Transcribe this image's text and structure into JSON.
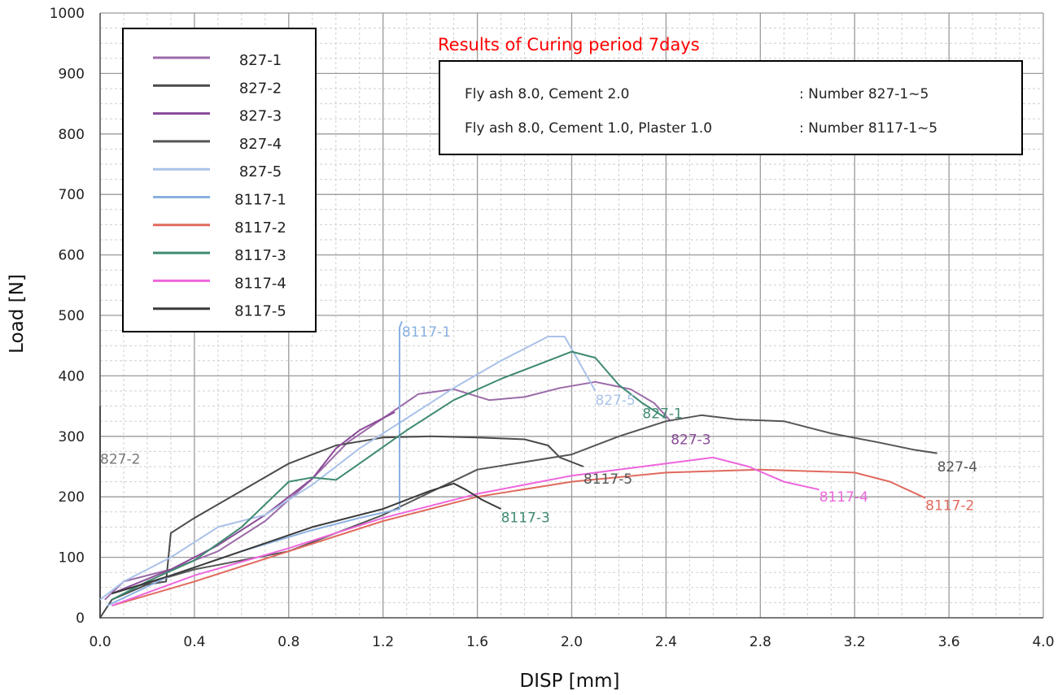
{
  "chart_data": {
    "type": "line",
    "xlabel": "DISP [mm]",
    "ylabel": "Load [N]",
    "xlim": [
      0.0,
      4.0
    ],
    "ylim": [
      0,
      1000
    ],
    "xticks": [
      "0.0",
      "0.4",
      "0.8",
      "1.2",
      "1.6",
      "2.0",
      "2.4",
      "2.8",
      "3.2",
      "3.6",
      "4.0"
    ],
    "yticks": [
      "0",
      "100",
      "200",
      "300",
      "400",
      "500",
      "600",
      "700",
      "800",
      "900",
      "1000"
    ],
    "grid": true,
    "legend_position": "top-left",
    "annotation": {
      "title": "Results of Curing period 7days",
      "rows": [
        {
          "material": "Fly ash 8.0, Cement 2.0",
          "number": ":  Number 827-1~5"
        },
        {
          "material": "Fly ash 8.0, Cement 1.0, Plaster 1.0",
          "number": ":  Number 8117-1~5"
        }
      ]
    },
    "series": [
      {
        "name": "827-1",
        "color": "#9b6aa8",
        "label": "827-1",
        "points": [
          [
            0.02,
            30
          ],
          [
            0.1,
            60
          ],
          [
            0.3,
            80
          ],
          [
            0.5,
            110
          ],
          [
            0.7,
            160
          ],
          [
            0.9,
            230
          ],
          [
            1.05,
            290
          ],
          [
            1.2,
            330
          ],
          [
            1.35,
            370
          ],
          [
            1.5,
            378
          ],
          [
            1.65,
            360
          ],
          [
            1.8,
            365
          ],
          [
            1.95,
            380
          ],
          [
            2.1,
            390
          ],
          [
            2.25,
            378
          ],
          [
            2.35,
            355
          ],
          [
            2.42,
            325
          ]
        ]
      },
      {
        "name": "827-2",
        "color": "#4a4a4a",
        "label": "827-2",
        "points": [
          [
            0.0,
            350
          ],
          [
            0.0,
            0
          ],
          [
            0.05,
            30
          ],
          [
            0.2,
            55
          ],
          [
            0.28,
            60
          ],
          [
            0.3,
            140
          ],
          [
            0.4,
            165
          ],
          [
            0.6,
            210
          ],
          [
            0.8,
            255
          ],
          [
            1.0,
            285
          ],
          [
            1.2,
            298
          ],
          [
            1.4,
            300
          ],
          [
            1.6,
            298
          ],
          [
            1.8,
            295
          ],
          [
            1.9,
            285
          ],
          [
            1.95,
            265
          ],
          [
            2.05,
            250
          ]
        ]
      },
      {
        "name": "827-3",
        "color": "#8a4a98",
        "label": "827-3",
        "points": [
          [
            0.05,
            40
          ],
          [
            0.3,
            80
          ],
          [
            0.5,
            120
          ],
          [
            0.7,
            170
          ],
          [
            0.9,
            230
          ],
          [
            1.0,
            280
          ],
          [
            1.1,
            310
          ],
          [
            1.25,
            340
          ]
        ]
      },
      {
        "name": "827-4",
        "color": "#555555",
        "label": "827-4",
        "points": [
          [
            0.05,
            40
          ],
          [
            0.4,
            80
          ],
          [
            0.8,
            110
          ],
          [
            1.2,
            170
          ],
          [
            1.6,
            245
          ],
          [
            2.0,
            270
          ],
          [
            2.2,
            300
          ],
          [
            2.4,
            325
          ],
          [
            2.55,
            335
          ],
          [
            2.7,
            328
          ],
          [
            2.9,
            325
          ],
          [
            3.1,
            305
          ],
          [
            3.3,
            290
          ],
          [
            3.45,
            278
          ],
          [
            3.55,
            272
          ]
        ]
      },
      {
        "name": "827-5",
        "color": "#a9c2e8",
        "label": "827-5",
        "points": [
          [
            0.0,
            30
          ],
          [
            0.1,
            60
          ],
          [
            0.3,
            100
          ],
          [
            0.5,
            150
          ],
          [
            0.7,
            170
          ],
          [
            0.9,
            220
          ],
          [
            1.1,
            280
          ],
          [
            1.3,
            330
          ],
          [
            1.5,
            380
          ],
          [
            1.7,
            425
          ],
          [
            1.9,
            465
          ],
          [
            1.97,
            465
          ],
          [
            2.05,
            410
          ],
          [
            2.1,
            375
          ]
        ]
      },
      {
        "name": "8117-1",
        "color": "#8ab0e0",
        "label": "8117-1",
        "points": [
          [
            0.03,
            20
          ],
          [
            0.3,
            70
          ],
          [
            0.6,
            110
          ],
          [
            0.9,
            145
          ],
          [
            1.1,
            165
          ],
          [
            1.27,
            180
          ],
          [
            1.27,
            480
          ],
          [
            1.28,
            490
          ]
        ]
      },
      {
        "name": "8117-2",
        "color": "#e06a5e",
        "label": "8117-2",
        "points": [
          [
            0.05,
            20
          ],
          [
            0.4,
            60
          ],
          [
            0.8,
            110
          ],
          [
            1.2,
            160
          ],
          [
            1.6,
            200
          ],
          [
            2.0,
            225
          ],
          [
            2.4,
            240
          ],
          [
            2.8,
            245
          ],
          [
            3.2,
            240
          ],
          [
            3.35,
            225
          ],
          [
            3.5,
            198
          ]
        ]
      },
      {
        "name": "8117-3",
        "color": "#3f8a70",
        "label": "8117-3",
        "points": [
          [
            0.05,
            30
          ],
          [
            0.2,
            60
          ],
          [
            0.4,
            95
          ],
          [
            0.6,
            150
          ],
          [
            0.8,
            225
          ],
          [
            0.9,
            232
          ],
          [
            1.0,
            228
          ],
          [
            1.1,
            255
          ],
          [
            1.3,
            310
          ],
          [
            1.5,
            360
          ],
          [
            1.7,
            395
          ],
          [
            1.9,
            425
          ],
          [
            2.0,
            440
          ],
          [
            2.1,
            430
          ],
          [
            2.2,
            385
          ],
          [
            2.3,
            355
          ],
          [
            2.4,
            330
          ]
        ]
      },
      {
        "name": "8117-4",
        "color": "#ee66dd",
        "label": "8117-4",
        "points": [
          [
            0.05,
            20
          ],
          [
            0.4,
            70
          ],
          [
            0.8,
            115
          ],
          [
            1.2,
            165
          ],
          [
            1.6,
            205
          ],
          [
            2.0,
            235
          ],
          [
            2.3,
            250
          ],
          [
            2.6,
            265
          ],
          [
            2.75,
            250
          ],
          [
            2.9,
            225
          ],
          [
            3.05,
            212
          ]
        ]
      },
      {
        "name": "8117-5",
        "color": "#3a3a3a",
        "label": "8117-5",
        "points": [
          [
            0.05,
            40
          ],
          [
            0.3,
            70
          ],
          [
            0.6,
            110
          ],
          [
            0.9,
            150
          ],
          [
            1.2,
            180
          ],
          [
            1.4,
            210
          ],
          [
            1.5,
            222
          ],
          [
            1.55,
            212
          ],
          [
            1.62,
            195
          ],
          [
            1.7,
            180
          ]
        ]
      }
    ],
    "curve_labels": [
      {
        "text": "8117-1",
        "x": 1.28,
        "y": 465,
        "color": "#8ab0e0"
      },
      {
        "text": "827-2",
        "x": 0.0,
        "y": 255,
        "color": "#777777"
      },
      {
        "text": "827-5",
        "x": 2.1,
        "y": 352,
        "color": "#a9c2e8"
      },
      {
        "text": "827-1",
        "x": 2.3,
        "y": 330,
        "color": "#3f8a70"
      },
      {
        "text": "827-3",
        "x": 2.42,
        "y": 287,
        "color": "#8a4a98"
      },
      {
        "text": "8117-5",
        "x": 2.05,
        "y": 222,
        "color": "#555555"
      },
      {
        "text": "827-4",
        "x": 3.55,
        "y": 242,
        "color": "#555555"
      },
      {
        "text": "8117-3",
        "x": 1.7,
        "y": 158,
        "color": "#3f8a70"
      },
      {
        "text": "8117-4",
        "x": 3.05,
        "y": 192,
        "color": "#ee66dd"
      },
      {
        "text": "8117-2",
        "x": 3.5,
        "y": 178,
        "color": "#e06a5e"
      }
    ]
  }
}
